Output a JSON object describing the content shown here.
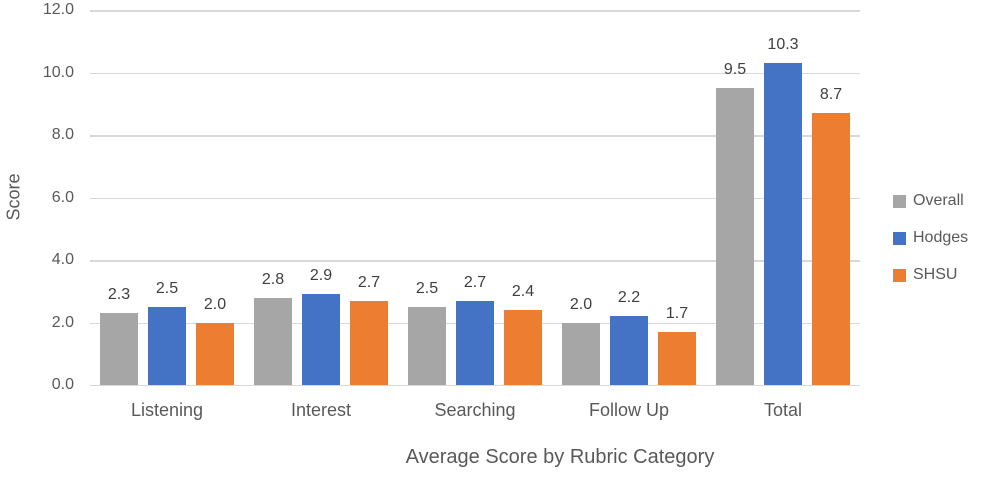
{
  "chart_data": {
    "type": "bar",
    "title": "",
    "xlabel": "Average Score by Rubric Category",
    "ylabel": "Score",
    "categories": [
      "Listening",
      "Interest",
      "Searching",
      "Follow Up",
      "Total"
    ],
    "series": [
      {
        "name": "Overall",
        "color": "#a6a6a6",
        "values": [
          2.3,
          2.8,
          2.5,
          2.0,
          9.5
        ]
      },
      {
        "name": "Hodges",
        "color": "#4472c4",
        "values": [
          2.5,
          2.9,
          2.7,
          2.2,
          10.3
        ]
      },
      {
        "name": "SHSU",
        "color": "#ed7d31",
        "values": [
          2.0,
          2.7,
          2.4,
          1.7,
          8.7
        ]
      }
    ],
    "ylim": [
      0,
      12
    ],
    "ytick_step": 2,
    "ytick_labels": [
      "0.0",
      "2.0",
      "4.0",
      "6.0",
      "8.0",
      "10.0",
      "12.0"
    ],
    "grid": true,
    "legend_position": "right",
    "data_labels": true
  },
  "style": {
    "gridline_color": "#d9d9d9",
    "axis_line_color": "#d9d9d9",
    "tick_text_color": "#595959",
    "data_label_color": "#404040"
  }
}
